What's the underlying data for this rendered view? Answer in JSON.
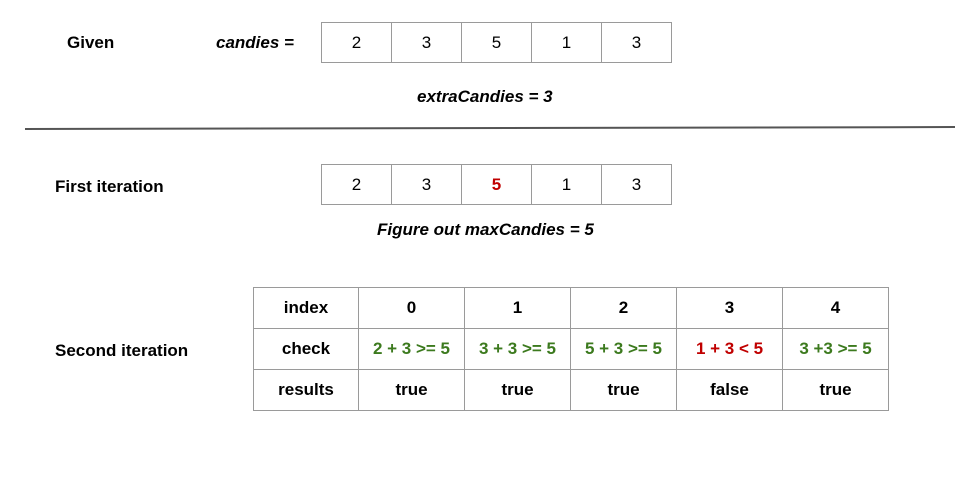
{
  "given": {
    "label": "Given",
    "candies_label": "candies =",
    "candies": [
      "2",
      "3",
      "5",
      "1",
      "3"
    ],
    "extra_label": "extraCandies = 3"
  },
  "first_iteration": {
    "label": "First iteration",
    "candies": [
      "2",
      "3",
      "5",
      "1",
      "3"
    ],
    "highlight_index": 2,
    "caption": "Figure out maxCandies = 5"
  },
  "second_iteration": {
    "label": "Second iteration",
    "rows": {
      "index": {
        "header": "index",
        "values": [
          "0",
          "1",
          "2",
          "3",
          "4"
        ]
      },
      "check": {
        "header": "check",
        "values": [
          "2 + 3 >= 5",
          "3 + 3 >= 5",
          "5 + 3 >= 5",
          "1 + 3 < 5",
          "3 +3 >= 5"
        ],
        "status": [
          "ok",
          "ok",
          "ok",
          "bad",
          "ok"
        ]
      },
      "results": {
        "header": "results",
        "values": [
          "true",
          "true",
          "true",
          "false",
          "true"
        ]
      }
    }
  },
  "colors": {
    "ok": "#3c7a1e",
    "bad": "#c00000",
    "border": "#9a9a9a"
  }
}
